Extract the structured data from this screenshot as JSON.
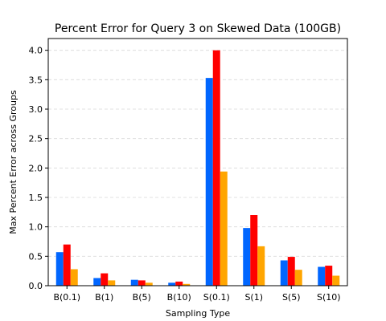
{
  "chart_data": {
    "type": "bar",
    "title": "Percent Error for Query 3 on Skewed Data (100GB)",
    "xlabel": "Sampling Type",
    "ylabel": "Max Percent Error across Groups",
    "categories": [
      "B(0.1)",
      "B(1)",
      "B(5)",
      "B(10)",
      "S(0.1)",
      "S(1)",
      "S(5)",
      "S(10)"
    ],
    "ylim": [
      0,
      4.2
    ],
    "yticks": [
      0.0,
      0.5,
      1.0,
      1.5,
      2.0,
      2.5,
      3.0,
      3.5,
      4.0
    ],
    "ytick_labels": [
      "0.0",
      "0.5",
      "1.0",
      "1.5",
      "2.0",
      "2.5",
      "3.0",
      "3.5",
      "4.0"
    ],
    "grid": true,
    "series": [
      {
        "color": "#0066ff",
        "values": [
          0.57,
          0.13,
          0.1,
          0.05,
          3.53,
          0.98,
          0.43,
          0.32
        ]
      },
      {
        "color": "#ff0000",
        "values": [
          0.7,
          0.21,
          0.09,
          0.07,
          4.0,
          1.2,
          0.49,
          0.34
        ]
      },
      {
        "color": "#ffa500",
        "values": [
          0.28,
          0.09,
          0.05,
          0.03,
          1.94,
          0.67,
          0.27,
          0.17
        ]
      }
    ]
  }
}
